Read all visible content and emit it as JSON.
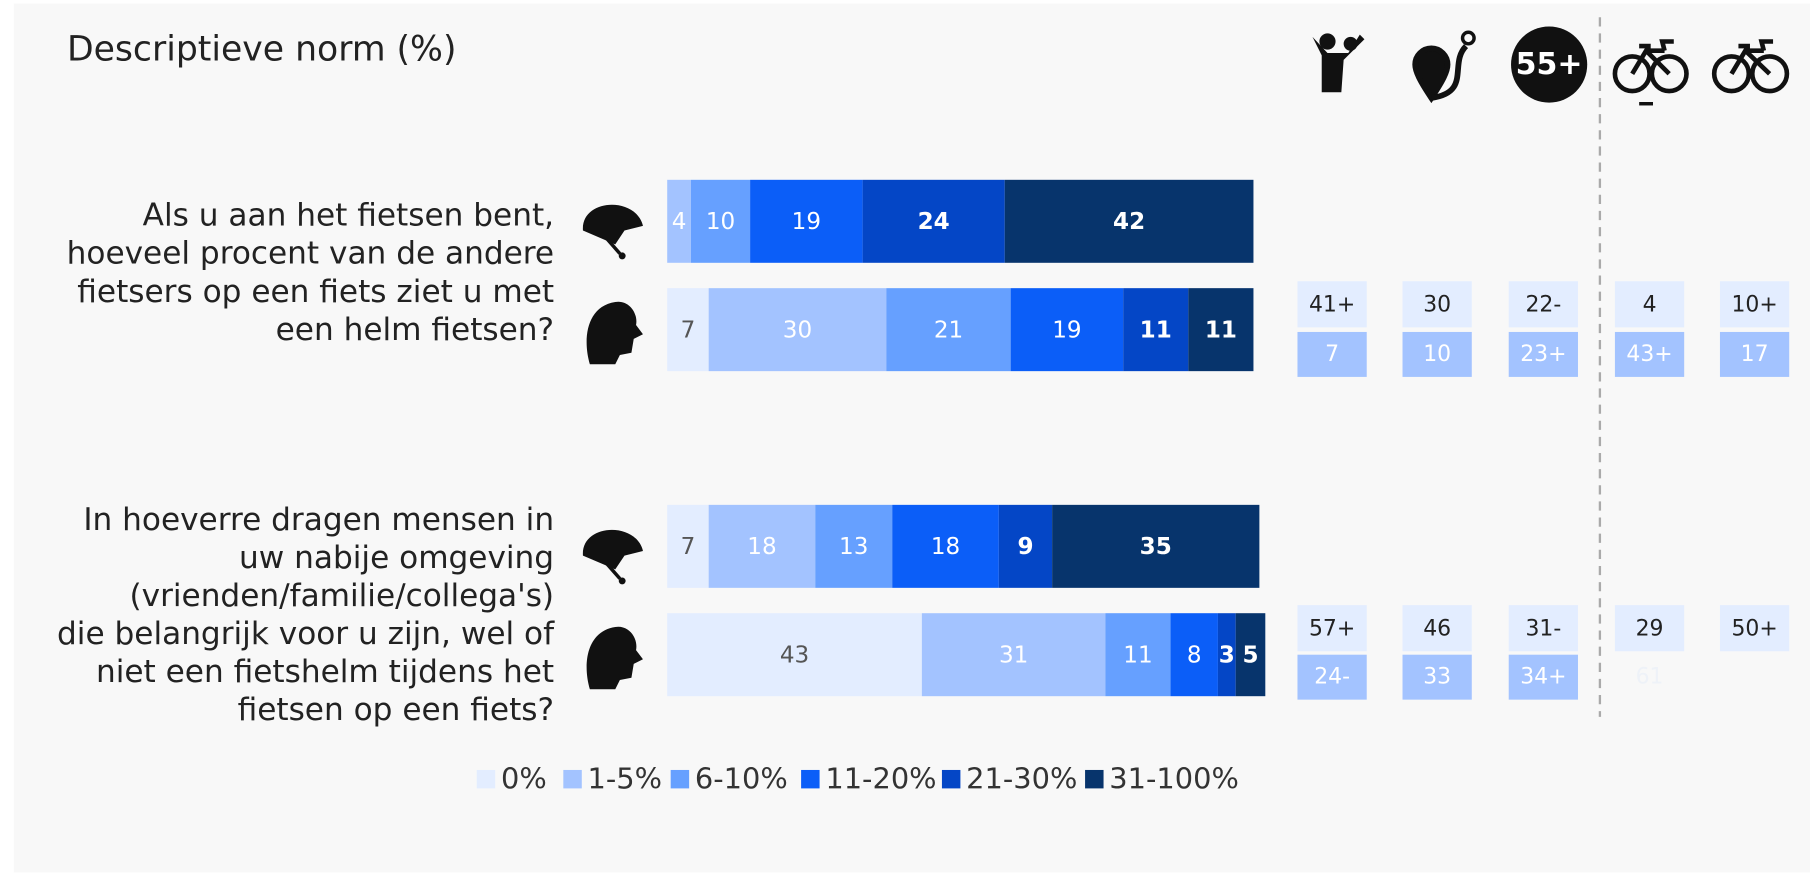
{
  "chart_data": {
    "type": "stacked_bar_h",
    "title": "Descriptieve norm (%)",
    "xlim": [
      0,
      100
    ],
    "legend": {
      "labels": [
        "0%",
        "1-5%",
        "6-10%",
        "11-20%",
        "21-30%",
        "31-100%"
      ],
      "colors": [
        "#e3edff",
        "#a3c3ff",
        "#66a0ff",
        "#0b5ef8",
        "#0446c6",
        "#07346c"
      ]
    },
    "groups": [
      {
        "question_lines": [
          "Als u aan het fietsen bent,",
          "hoeveel procent van de andere",
          "fietsers op een fiets ziet u met",
          "een helm fietsen?"
        ],
        "bars": [
          {
            "values": [
              null,
              4,
              10,
              19,
              24,
              42
            ]
          },
          {
            "values": [
              7,
              30,
              21,
              19,
              11,
              11
            ]
          }
        ],
        "side_boxes": [
          {
            "top": "41+",
            "bottom": "7"
          },
          {
            "top": "30",
            "bottom": "10"
          },
          {
            "top": "22-",
            "bottom": "23+"
          },
          {
            "top": "4",
            "bottom": "43+"
          },
          {
            "top": "10+",
            "bottom": "17"
          }
        ]
      },
      {
        "question_lines": [
          "In hoeverre dragen mensen in",
          "uw nabije omgeving",
          "(vrienden/familie/collega's)",
          "die belangrijk voor u zijn, wel of",
          "niet een fietshelm tijdens het",
          "fietsen op een fiets?"
        ],
        "bars": [
          {
            "values": [
              7,
              18,
              13,
              18,
              9,
              35
            ]
          },
          {
            "values": [
              43,
              31,
              11,
              8,
              3,
              5
            ]
          }
        ],
        "side_boxes": [
          {
            "top": "57+",
            "bottom": "24-"
          },
          {
            "top": "46",
            "bottom": "33"
          },
          {
            "top": "31-",
            "bottom": "34+"
          },
          {
            "top": "29",
            "bottom": "61"
          },
          {
            "top": "50+",
            "bottom": null
          }
        ]
      }
    ]
  }
}
